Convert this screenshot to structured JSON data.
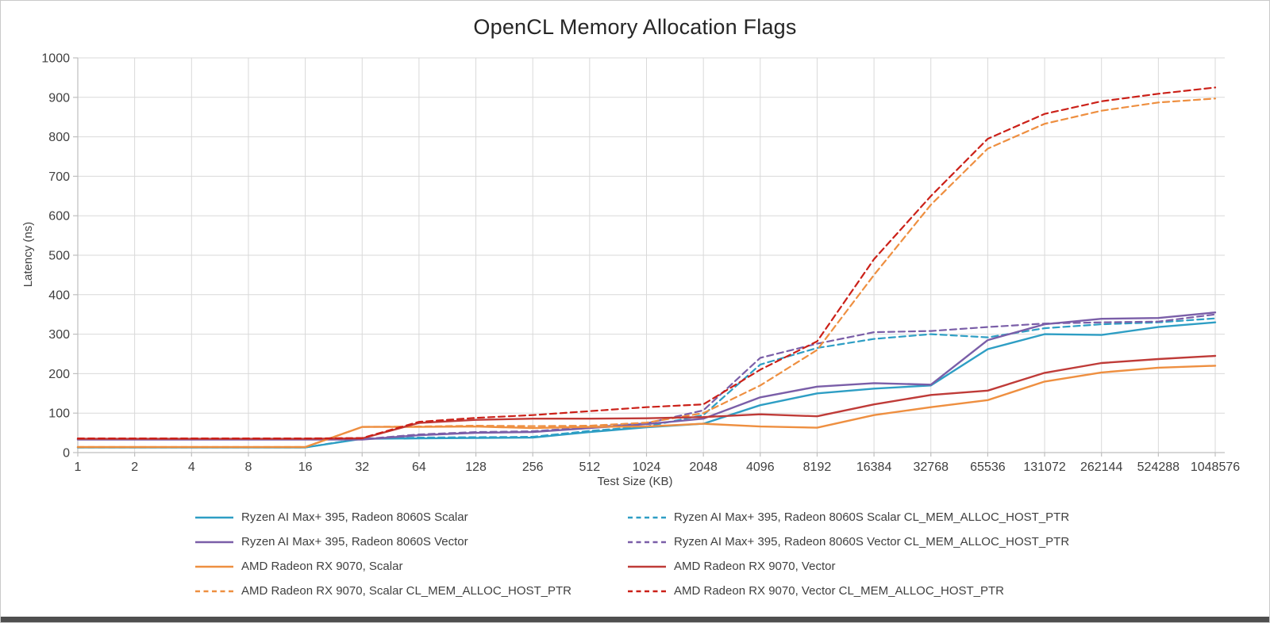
{
  "window": {
    "border_color": "#c9c9c9",
    "bottom_edge_color": "#4f4f4f"
  },
  "chart_data": {
    "type": "line",
    "title": "OpenCL Memory Allocation Flags",
    "xlabel": "Test Size (KB)",
    "ylabel": "Latency (ns)",
    "x_scale": "log2 categories",
    "categories": [
      "1",
      "2",
      "4",
      "8",
      "16",
      "32",
      "64",
      "128",
      "256",
      "512",
      "1024",
      "2048",
      "4096",
      "8192",
      "16384",
      "32768",
      "65536",
      "131072",
      "262144",
      "524288",
      "1048576"
    ],
    "ylim": [
      0,
      1000
    ],
    "y_tick_step": 100,
    "grid": true,
    "gridline_color": "#d9d9d9",
    "axis_line_color": "#bfbfbf",
    "axis_text_color": "#404040",
    "title_color": "#262626",
    "legend_position": "bottom, two columns",
    "legend_columns": {
      "left": [
        0,
        2,
        4,
        5
      ],
      "right": [
        1,
        3,
        6,
        7
      ]
    },
    "series": [
      {
        "name": "Ryzen AI Max+ 395, Radeon 8060S Scalar",
        "color": "#2e9ec4",
        "dash": false,
        "values": [
          13,
          13,
          13,
          13,
          13,
          35,
          36,
          37,
          38,
          52,
          64,
          73,
          120,
          150,
          162,
          170,
          262,
          300,
          298,
          318,
          330
        ]
      },
      {
        "name": "Ryzen AI Max+ 395, Radeon 8060S Scalar CL_MEM_ALLOC_HOST_PTR",
        "color": "#2e9ec4",
        "dash": true,
        "values": [
          13,
          13,
          13,
          13,
          13,
          36,
          38,
          39,
          40,
          55,
          66,
          95,
          223,
          265,
          288,
          300,
          292,
          315,
          325,
          330,
          340
        ]
      },
      {
        "name": "Ryzen AI Max+ 395, Radeon 8060S Vector",
        "color": "#7a5ea8",
        "dash": false,
        "values": [
          33,
          33,
          33,
          33,
          33,
          33,
          44,
          50,
          52,
          62,
          72,
          86,
          140,
          167,
          176,
          172,
          285,
          325,
          339,
          341,
          355
        ]
      },
      {
        "name": "Ryzen AI Max+ 395, Radeon 8060S Vector CL_MEM_ALLOC_HOST_PTR",
        "color": "#7a5ea8",
        "dash": true,
        "values": [
          34,
          34,
          34,
          34,
          34,
          34,
          46,
          52,
          54,
          64,
          74,
          107,
          240,
          276,
          305,
          308,
          318,
          327,
          330,
          332,
          350
        ]
      },
      {
        "name": "AMD Radeon RX 9070, Scalar",
        "color": "#ee8f40",
        "dash": false,
        "values": [
          14,
          14,
          14,
          14,
          14,
          65,
          65,
          66,
          62,
          65,
          66,
          73,
          66,
          63,
          95,
          115,
          133,
          180,
          203,
          215,
          220
        ]
      },
      {
        "name": "AMD Radeon RX 9070, Scalar CL_MEM_ALLOC_HOST_PTR",
        "color": "#ee8f40",
        "dash": true,
        "values": [
          14,
          14,
          14,
          14,
          14,
          65,
          66,
          68,
          67,
          68,
          76,
          100,
          170,
          260,
          450,
          628,
          770,
          833,
          866,
          887,
          897
        ]
      },
      {
        "name": "AMD Radeon RX 9070, Vector",
        "color": "#bf3b38",
        "dash": false,
        "values": [
          35,
          35,
          35,
          35,
          35,
          36,
          75,
          83,
          86,
          86,
          87,
          90,
          97,
          92,
          122,
          146,
          157,
          202,
          227,
          237,
          245
        ]
      },
      {
        "name": "AMD Radeon RX 9070, Vector CL_MEM_ALLOC_HOST_PTR",
        "color": "#cb2018",
        "dash": true,
        "values": [
          36,
          36,
          36,
          36,
          36,
          37,
          78,
          88,
          95,
          105,
          115,
          122,
          210,
          282,
          490,
          650,
          795,
          858,
          890,
          909,
          925
        ]
      }
    ]
  }
}
